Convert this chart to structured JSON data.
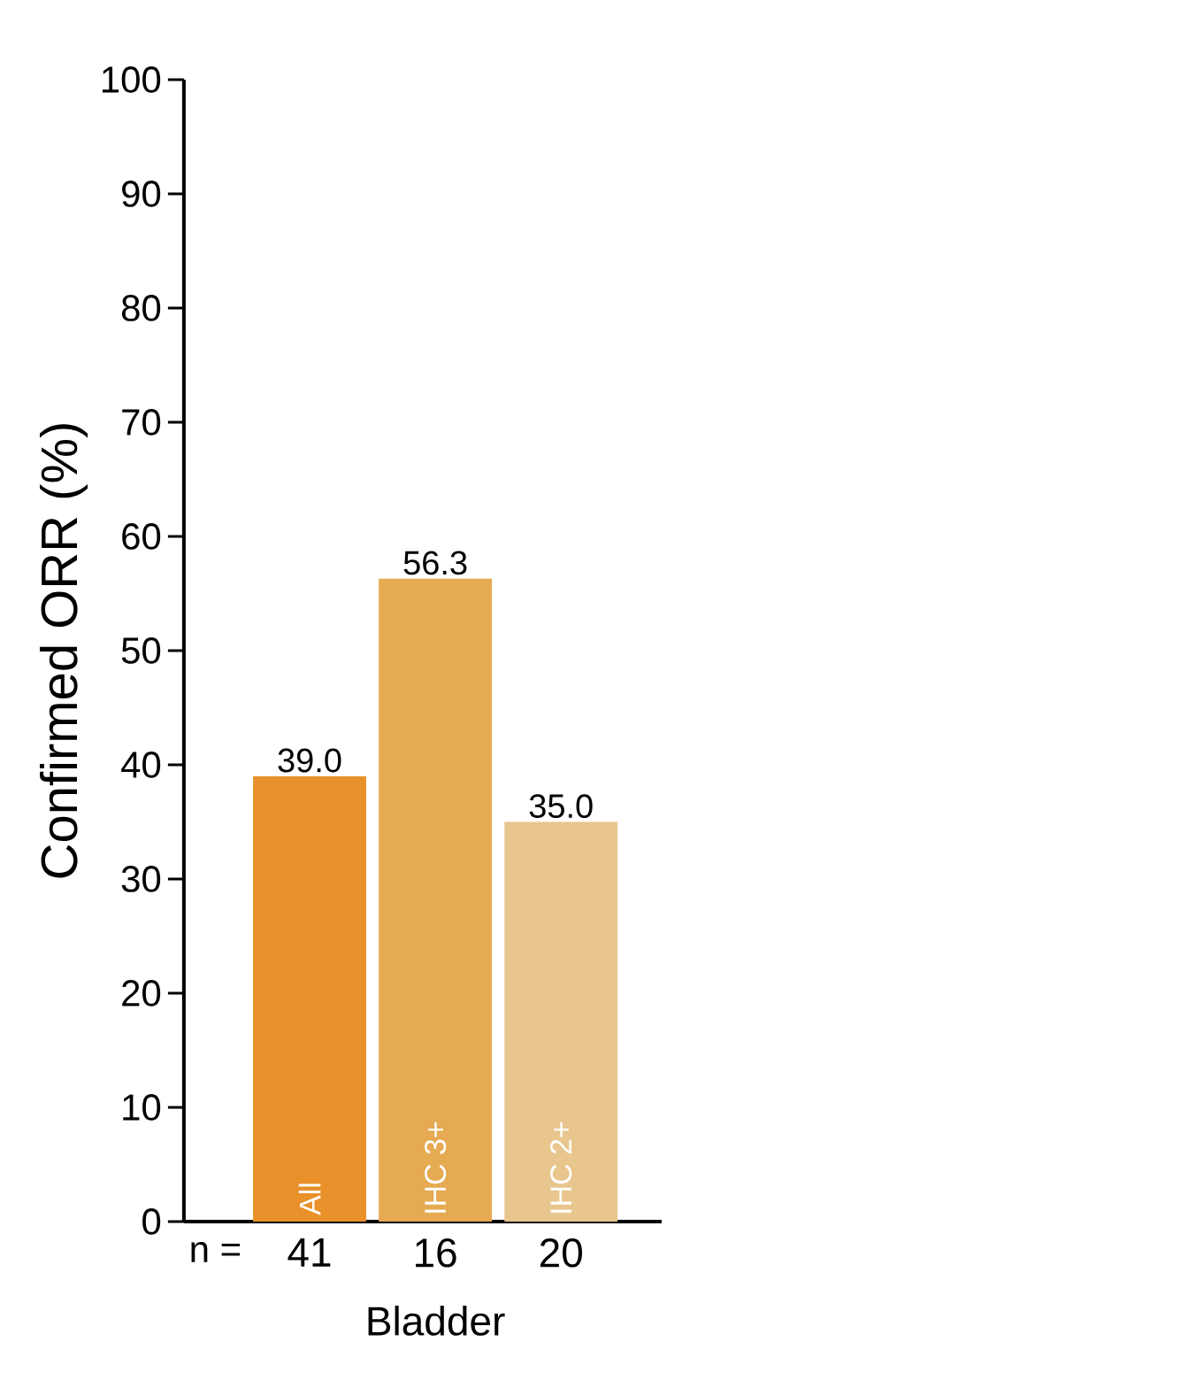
{
  "chart_data": {
    "type": "bar",
    "ylabel": "Confirmed ORR (%)",
    "xlabel": "Bladder",
    "categories": [
      "All",
      "IHC 3+",
      "IHC 2+"
    ],
    "values": [
      39.0,
      56.3,
      35.0
    ],
    "colors": [
      "#e8902a",
      "#e5aa52",
      "#e9c68e"
    ],
    "value_labels": [
      "39.0",
      "56.3",
      "35.0"
    ],
    "ylim": [
      0,
      100
    ],
    "yticks": [
      0,
      10,
      20,
      30,
      40,
      50,
      60,
      70,
      80,
      90,
      100
    ],
    "annotations": [
      "n =",
      "41",
      "16",
      "20"
    ],
    "grid": false
  }
}
